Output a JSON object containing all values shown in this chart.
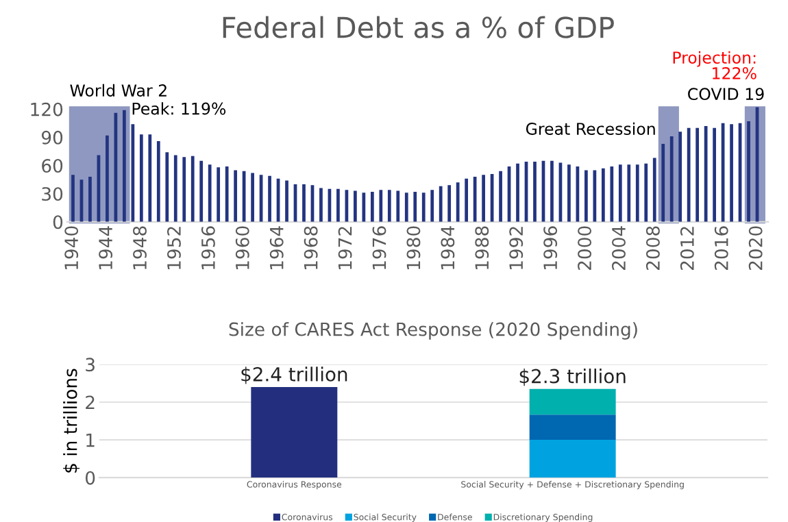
{
  "chart_data": [
    {
      "type": "bar",
      "title": "Federal Debt as a % of GDP",
      "x": [
        1940,
        1941,
        1942,
        1943,
        1944,
        1945,
        1946,
        1947,
        1948,
        1949,
        1950,
        1951,
        1952,
        1953,
        1954,
        1955,
        1956,
        1957,
        1958,
        1959,
        1960,
        1961,
        1962,
        1963,
        1964,
        1965,
        1966,
        1967,
        1968,
        1969,
        1970,
        1971,
        1972,
        1973,
        1974,
        1975,
        1976,
        1977,
        1978,
        1979,
        1980,
        1981,
        1982,
        1983,
        1984,
        1985,
        1986,
        1987,
        1988,
        1989,
        1990,
        1991,
        1992,
        1993,
        1994,
        1995,
        1996,
        1997,
        1998,
        1999,
        2000,
        2001,
        2002,
        2003,
        2004,
        2005,
        2006,
        2007,
        2008,
        2009,
        2010,
        2011,
        2012,
        2013,
        2014,
        2015,
        2016,
        2017,
        2018,
        2019,
        2020
      ],
      "series": [
        {
          "color": "#233480",
          "values": [
            50,
            45,
            48,
            71,
            92,
            116,
            119,
            104,
            93,
            93,
            86,
            74,
            71,
            69,
            70,
            65,
            61,
            58,
            59,
            55,
            54,
            52,
            50,
            49,
            46,
            44,
            40,
            40,
            39,
            36,
            35,
            35,
            34,
            33,
            31,
            32,
            34,
            34,
            33,
            31,
            32,
            31,
            34,
            38,
            39,
            42,
            46,
            48,
            50,
            51,
            54,
            59,
            62,
            64,
            64,
            65,
            65,
            63,
            61,
            59,
            55,
            55,
            57,
            59,
            61,
            61,
            61,
            62,
            68,
            83,
            91,
            96,
            100,
            100,
            102,
            100,
            105,
            104,
            105,
            107,
            122
          ]
        }
      ],
      "xlim": [
        1939.3,
        2021.3
      ],
      "xticks": [
        1940,
        1944,
        1948,
        1952,
        1956,
        1960,
        1964,
        1968,
        1972,
        1976,
        1980,
        1984,
        1988,
        1992,
        1996,
        2000,
        2004,
        2008,
        2012,
        2016,
        2020
      ],
      "ylim": [
        0,
        125
      ],
      "yticks": [
        0,
        30,
        60,
        90,
        120
      ],
      "bands": [
        {
          "axis": "x",
          "from": 1939.6,
          "to": 1946.6,
          "label": "World War 2",
          "color": "#8f98c0"
        },
        {
          "axis": "x",
          "from": 2008.5,
          "to": 2010.8,
          "label": "Great Recession",
          "color": "#8f98c0"
        },
        {
          "axis": "x",
          "from": 2018.6,
          "to": 2020.9,
          "label": "COVID 19",
          "color": "#8f98c0"
        }
      ],
      "annotations": [
        {
          "text": "Peak: 119%",
          "x": 1946,
          "y": 119
        },
        {
          "text": "Projection: 122%",
          "x": 2020,
          "y": 122
        }
      ],
      "grid": false,
      "legend": false
    },
    {
      "type": "bar",
      "title": "Size of CARES Act Response (2020 Spending)",
      "ylabel": "$ in trillions",
      "categories": [
        "Coronavirus Response",
        "Social Security + Defense + Discretionary Spending"
      ],
      "stacked": true,
      "series": [
        {
          "name": "Coronavirus",
          "color": "#232f7e",
          "values": [
            2.4,
            null
          ]
        },
        {
          "name": "Social Security",
          "color": "#00a3e0",
          "values": [
            null,
            1.0
          ]
        },
        {
          "name": "Defense",
          "color": "#0067b1",
          "values": [
            null,
            0.67
          ]
        },
        {
          "name": "Discretionary Spending",
          "color": "#00b0ad",
          "values": [
            null,
            0.68
          ]
        }
      ],
      "totals": [
        "$2.4 trillion",
        "$2.3 trillion"
      ],
      "ylim": [
        0,
        3
      ],
      "yticks": [
        0,
        1,
        2,
        3
      ],
      "grid": "y",
      "legend": "bottom"
    }
  ]
}
